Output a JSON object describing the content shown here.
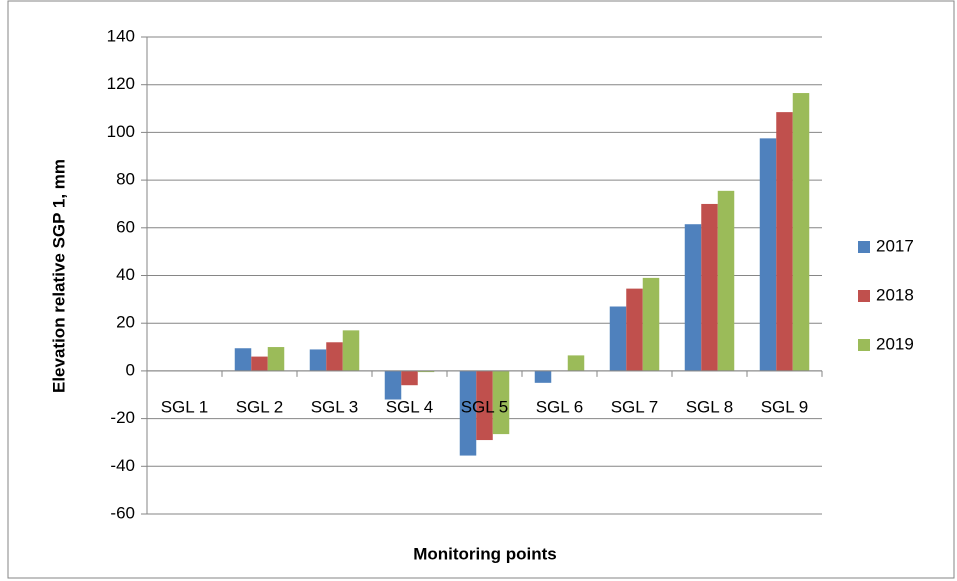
{
  "chart_data": {
    "type": "bar",
    "x_label": "Monitoring points",
    "y_label": "Elevation relative SGP 1, mm",
    "categories": [
      "SGL 1",
      "SGL 2",
      "SGL 3",
      "SGL 4",
      "SGL 5",
      "SGL 6",
      "SGL 7",
      "SGL 8",
      "SGL 9"
    ],
    "series": [
      {
        "name": "2017",
        "color": "#4f81bd",
        "values": [
          0,
          9.5,
          9,
          -12,
          -35.5,
          -5,
          27,
          61.5,
          97.5
        ]
      },
      {
        "name": "2018",
        "color": "#c0504d",
        "values": [
          0,
          6,
          12,
          -6,
          -29,
          0,
          34.5,
          70,
          108.5
        ]
      },
      {
        "name": "2019",
        "color": "#9bbb59",
        "values": [
          0,
          10,
          17,
          -0.5,
          -26.5,
          6.5,
          39,
          75.5,
          116.5
        ]
      }
    ],
    "ylim": [
      -60,
      140
    ],
    "yticks": [
      -60,
      -40,
      -20,
      0,
      20,
      40,
      60,
      80,
      100,
      120,
      140
    ],
    "grid": true,
    "legend": "right"
  }
}
